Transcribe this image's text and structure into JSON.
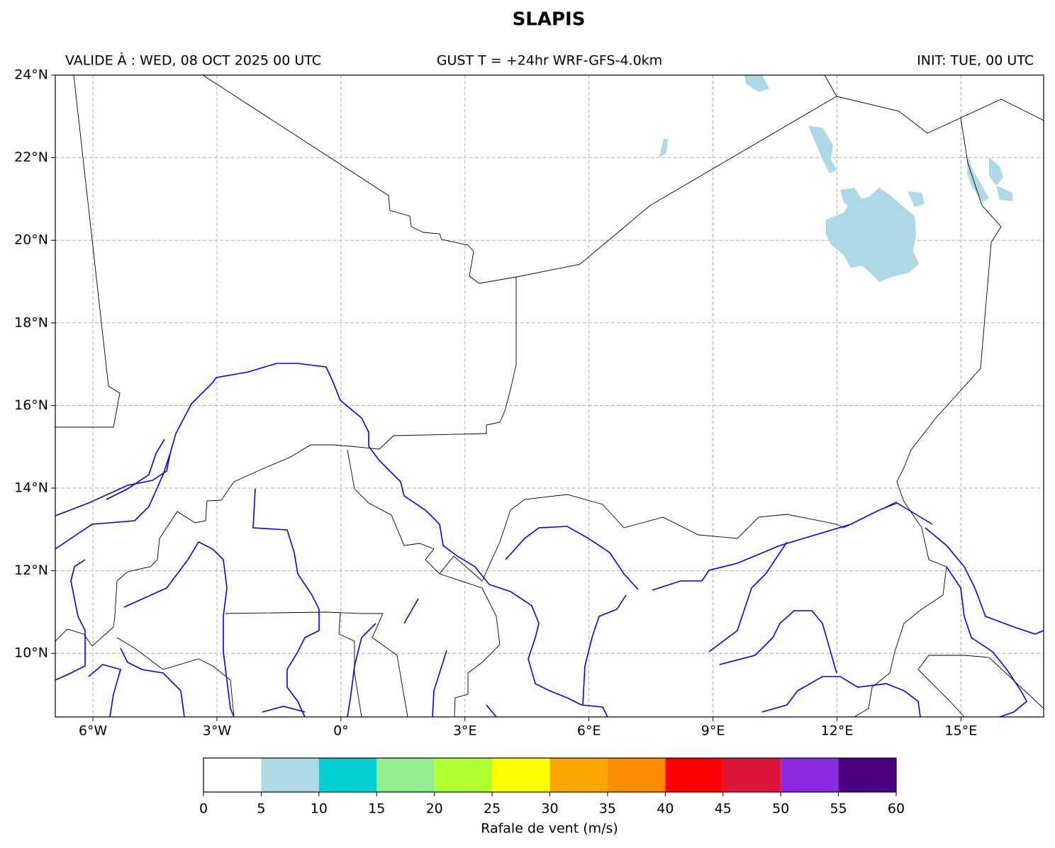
{
  "title": "SLAPIS",
  "header": {
    "valid": "VALIDE À : WED, 08 OCT 2025 00 UTC",
    "run": "GUST T = +24hr WRF-GFS-4.0km",
    "init": "INIT: TUE, 00 UTC"
  },
  "map": {
    "lonlim": [
      -6.91,
      17.0
    ],
    "latlim": [
      8.46,
      24
    ],
    "grid": true,
    "lon_ticks": [
      {
        "value": -6,
        "label": "6°W"
      },
      {
        "value": -3,
        "label": "3°W"
      },
      {
        "value": 0,
        "label": "0°"
      },
      {
        "value": 3,
        "label": "3°E"
      },
      {
        "value": 6,
        "label": "6°E"
      },
      {
        "value": 9,
        "label": "9°E"
      },
      {
        "value": 12,
        "label": "12°E"
      },
      {
        "value": 15,
        "label": "15°E"
      }
    ],
    "lat_ticks": [
      {
        "value": 10,
        "label": "10°N"
      },
      {
        "value": 12,
        "label": "12°N"
      },
      {
        "value": 14,
        "label": "14°N"
      },
      {
        "value": 16,
        "label": "16°N"
      },
      {
        "value": 18,
        "label": "18°N"
      },
      {
        "value": 20,
        "label": "20°N"
      },
      {
        "value": 22,
        "label": "22°N"
      },
      {
        "value": 24,
        "label": "24°N"
      }
    ]
  },
  "colorbar": {
    "label": "Rafale de vent (m/s)",
    "bounds": [
      0,
      5,
      10,
      15,
      20,
      25,
      30,
      35,
      40,
      45,
      50,
      55,
      60
    ],
    "colors": [
      "#ffffff",
      "#add8e6",
      "#00ced1",
      "#90ee90",
      "#adff2f",
      "#ffff00",
      "#ffa500",
      "#ff8c00",
      "#ff0000",
      "#dc143c",
      "#8a2be2",
      "#4b0082"
    ]
  }
}
